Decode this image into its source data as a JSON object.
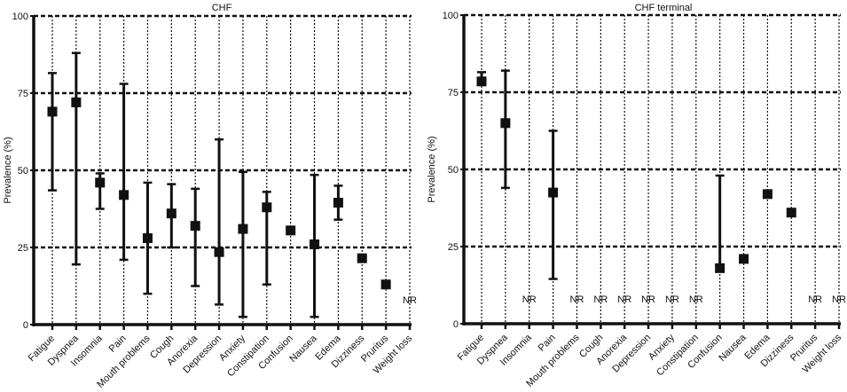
{
  "chart_data": [
    {
      "type": "scatter",
      "title": "CHF",
      "ylabel": "Prevalence (%)",
      "xlabel": "",
      "ylim": [
        0,
        100
      ],
      "yticks": [
        "0",
        "25",
        "50",
        "75",
        "100"
      ],
      "grid": true,
      "na_label": "NR",
      "categories": [
        "Fatigue",
        "Dyspnea",
        "Insomnia",
        "Pain",
        "Mouth problems",
        "Cough",
        "Anorexia",
        "Depression",
        "Anxiety",
        "Constipation",
        "Confusion",
        "Nausea",
        "Edema",
        "Dizziness",
        "Pruritus",
        "Weight loss"
      ],
      "values": [
        69,
        72,
        46,
        42,
        28,
        36,
        32,
        23.5,
        31,
        38,
        30.5,
        26,
        39.5,
        21.5,
        13,
        null
      ],
      "upper": [
        81.5,
        88,
        49,
        78,
        46,
        45.5,
        44,
        60,
        49.5,
        43,
        null,
        48.5,
        45,
        null,
        null,
        null
      ],
      "lower": [
        43.5,
        19.5,
        37.5,
        21,
        10,
        25,
        12.5,
        6.5,
        2.5,
        13,
        null,
        2.5,
        34,
        null,
        null,
        null
      ]
    },
    {
      "type": "scatter",
      "title": "CHF terminal",
      "ylabel": "Prevalence (%)",
      "xlabel": "",
      "ylim": [
        0,
        100
      ],
      "yticks": [
        "0",
        "25",
        "50",
        "75",
        "100"
      ],
      "grid": true,
      "na_label": "NR",
      "categories": [
        "Fatigue",
        "Dyspnea",
        "Insomnia",
        "Pain",
        "Mouth problems",
        "Cough",
        "Anorexia",
        "Depression",
        "Anxiety",
        "Constipation",
        "Confusion",
        "Nausea",
        "Edema",
        "Dizziness",
        "Pruritus",
        "Weight loss"
      ],
      "values": [
        78.5,
        65,
        null,
        42.5,
        null,
        null,
        null,
        null,
        null,
        null,
        18,
        21,
        42,
        36,
        null,
        null
      ],
      "upper": [
        81.5,
        82,
        null,
        62.5,
        null,
        null,
        null,
        null,
        null,
        null,
        48,
        null,
        null,
        null,
        null,
        null
      ],
      "lower": [
        null,
        44,
        null,
        14.5,
        null,
        null,
        null,
        null,
        null,
        null,
        null,
        null,
        null,
        null,
        null,
        null
      ]
    }
  ]
}
